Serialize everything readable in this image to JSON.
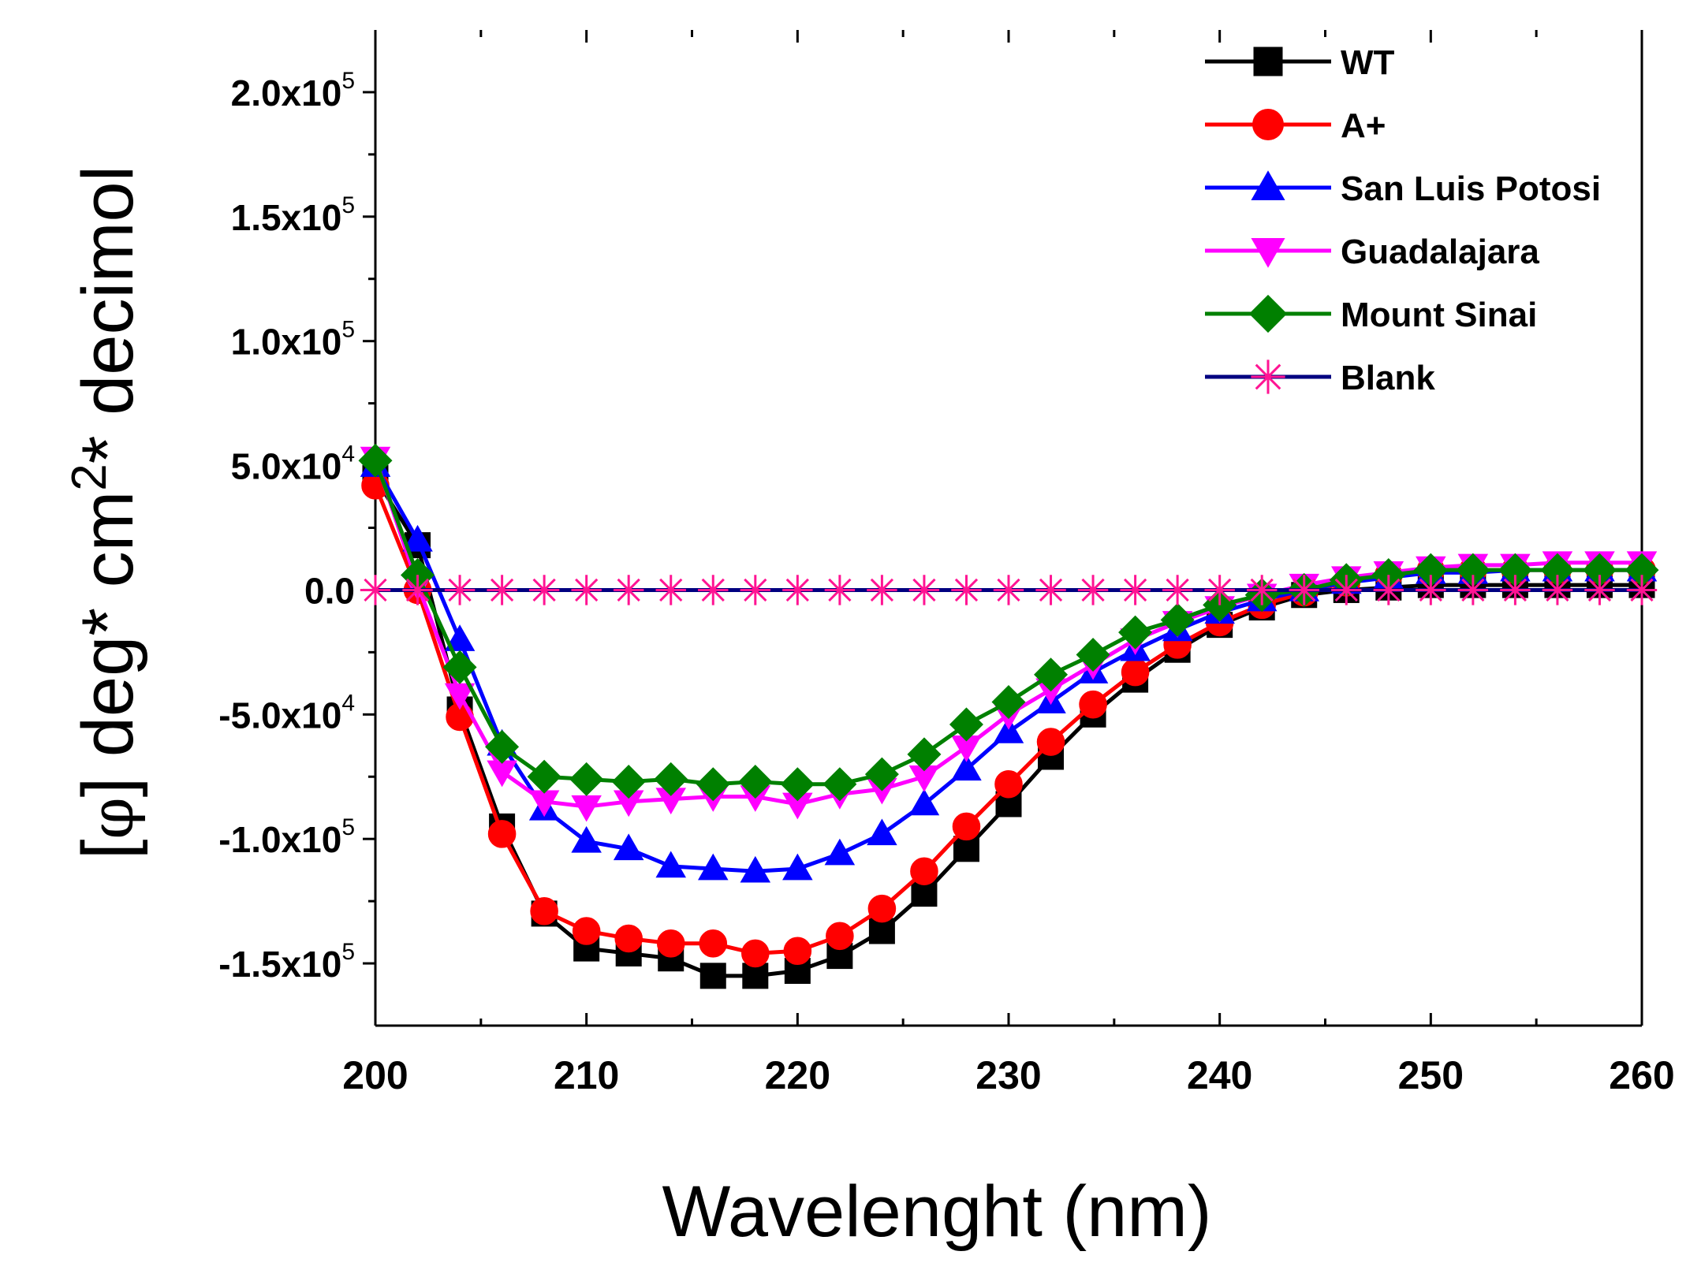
{
  "chart_data": {
    "type": "line",
    "title": "",
    "xlabel": "Wavelenght (nm)",
    "ylabel_parts": {
      "prefix": "[",
      "phi": "φ",
      "after_phi": "] deg* cm",
      "sup": "2",
      "suffix": "* decimol"
    },
    "xlim": [
      200,
      260
    ],
    "ylim": [
      -175000,
      225000
    ],
    "x_ticks": [
      {
        "value": 200,
        "label": "200"
      },
      {
        "value": 210,
        "label": "210"
      },
      {
        "value": 220,
        "label": "220"
      },
      {
        "value": 230,
        "label": "230"
      },
      {
        "value": 240,
        "label": "240"
      },
      {
        "value": 250,
        "label": "250"
      },
      {
        "value": 260,
        "label": "260"
      }
    ],
    "y_ticks": [
      {
        "value": 200000,
        "mant": "2.0x10",
        "exp": "5"
      },
      {
        "value": 150000,
        "mant": "1.5x10",
        "exp": "5"
      },
      {
        "value": 100000,
        "mant": "1.0x10",
        "exp": "5"
      },
      {
        "value": 50000,
        "mant": "5.0x10",
        "exp": "4"
      },
      {
        "value": 0,
        "mant": "0.0",
        "exp": ""
      },
      {
        "value": -50000,
        "mant": "-5.0x10",
        "exp": "4"
      },
      {
        "value": -100000,
        "mant": "-1.0x10",
        "exp": "5"
      },
      {
        "value": -150000,
        "mant": "-1.5x10",
        "exp": "5"
      }
    ],
    "x": [
      200,
      202,
      204,
      206,
      208,
      210,
      212,
      214,
      216,
      218,
      220,
      222,
      224,
      226,
      228,
      230,
      232,
      234,
      236,
      238,
      240,
      242,
      244,
      246,
      248,
      250,
      252,
      254,
      256,
      258,
      260
    ],
    "series": [
      {
        "name": "WT",
        "color": "#000000",
        "marker": "square",
        "values": [
          45000,
          18000,
          -48000,
          -95000,
          -130000,
          -144000,
          -146000,
          -148000,
          -155000,
          -155000,
          -153000,
          -147000,
          -137000,
          -122000,
          -104000,
          -86000,
          -67000,
          -50000,
          -36000,
          -24000,
          -14000,
          -7000,
          -2000,
          0,
          1000,
          2000,
          2000,
          2000,
          2000,
          2000,
          2000
        ]
      },
      {
        "name": "A+",
        "color": "#ff0000",
        "marker": "circle",
        "values": [
          42000,
          0,
          -51000,
          -98000,
          -129000,
          -137000,
          -140000,
          -142000,
          -142000,
          -146000,
          -145000,
          -139000,
          -128000,
          -113000,
          -95000,
          -78000,
          -61000,
          -46000,
          -33000,
          -22000,
          -13000,
          -6000,
          -1000,
          3000,
          6000,
          8000,
          8000,
          8000,
          8000,
          8000,
          8000
        ]
      },
      {
        "name": "San Luis Potosi",
        "color": "#0000ff",
        "marker": "triangle-up",
        "values": [
          50000,
          20000,
          -20000,
          -62000,
          -88000,
          -101000,
          -104000,
          -111000,
          -112000,
          -113000,
          -112000,
          -106000,
          -98000,
          -86000,
          -72000,
          -57000,
          -45000,
          -33000,
          -24000,
          -16000,
          -9000,
          -4000,
          0,
          3000,
          5000,
          7000,
          7000,
          8000,
          8000,
          8000,
          8000
        ]
      },
      {
        "name": "Guadalajara",
        "color": "#ff00ff",
        "marker": "triangle-down",
        "values": [
          53000,
          2000,
          -42000,
          -73000,
          -85000,
          -87000,
          -85000,
          -84000,
          -83000,
          -83000,
          -86000,
          -82000,
          -80000,
          -75000,
          -63000,
          -50000,
          -40000,
          -30000,
          -20000,
          -13000,
          -7000,
          -2000,
          2000,
          5000,
          7000,
          9000,
          10000,
          10000,
          11000,
          11000,
          11000
        ]
      },
      {
        "name": "Mount Sinai",
        "color": "#008000",
        "marker": "diamond",
        "values": [
          52000,
          6000,
          -31000,
          -63000,
          -75000,
          -76000,
          -77000,
          -76000,
          -78000,
          -77000,
          -78000,
          -78000,
          -74000,
          -66000,
          -54000,
          -45000,
          -34000,
          -26000,
          -17000,
          -12000,
          -6000,
          -2000,
          0,
          4000,
          6000,
          8000,
          8000,
          8000,
          8000,
          8000,
          8000
        ]
      },
      {
        "name": "Blank",
        "color": "#000080",
        "marker": "asterisk",
        "marker_color": "#ff1493",
        "values": [
          0,
          0,
          0,
          0,
          0,
          0,
          0,
          0,
          0,
          0,
          0,
          0,
          0,
          0,
          0,
          0,
          0,
          0,
          0,
          0,
          0,
          0,
          0,
          0,
          0,
          0,
          0,
          0,
          0,
          0,
          0
        ]
      }
    ],
    "legend_position": "top-right",
    "grid": false
  }
}
